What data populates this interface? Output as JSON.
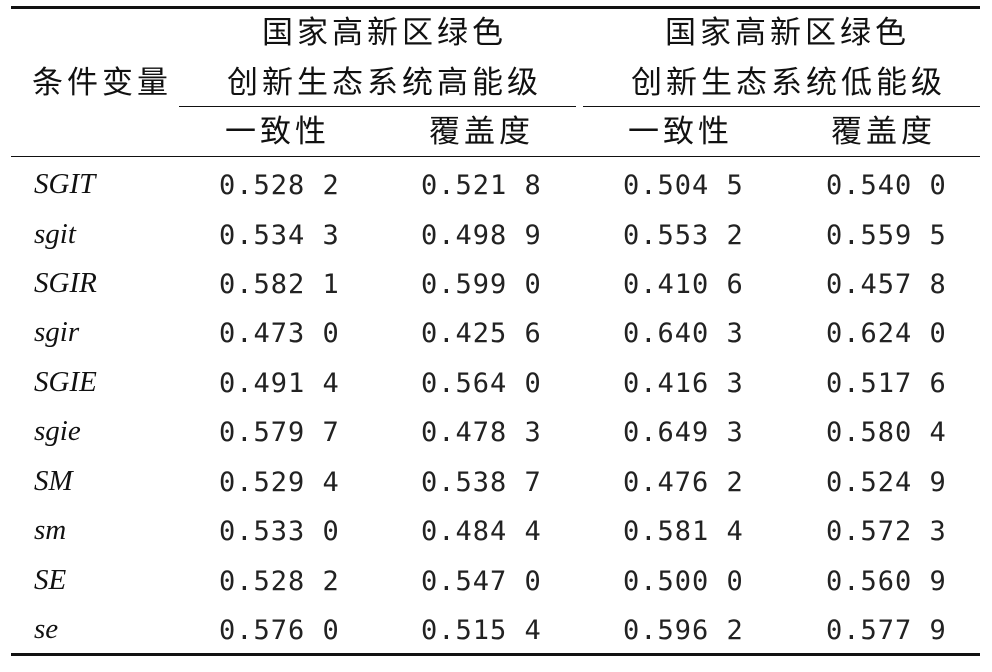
{
  "header": {
    "condition_label": "条件变量",
    "group_high_line1": "国家高新区绿色",
    "group_high_line2": "创新生态系统高能级",
    "group_low_line1": "国家高新区绿色",
    "group_low_line2": "创新生态系统低能级",
    "col_consistency_high": "一致性",
    "col_coverage_high": "覆盖度",
    "col_consistency_low": "一致性",
    "col_coverage_low": "覆盖度"
  },
  "rows": [
    {
      "var": "SGIT",
      "c1": "0.528 2",
      "c2": "0.521 8",
      "c3": "0.504 5",
      "c4": "0.540 0"
    },
    {
      "var": "sgit",
      "c1": "0.534 3",
      "c2": "0.498 9",
      "c3": "0.553 2",
      "c4": "0.559 5"
    },
    {
      "var": "SGIR",
      "c1": "0.582 1",
      "c2": "0.599 0",
      "c3": "0.410 6",
      "c4": "0.457 8"
    },
    {
      "var": "sgir",
      "c1": "0.473 0",
      "c2": "0.425 6",
      "c3": "0.640 3",
      "c4": "0.624 0"
    },
    {
      "var": "SGIE",
      "c1": "0.491 4",
      "c2": "0.564 0",
      "c3": "0.416 3",
      "c4": "0.517 6"
    },
    {
      "var": "sgie",
      "c1": "0.579 7",
      "c2": "0.478 3",
      "c3": "0.649 3",
      "c4": "0.580 4"
    },
    {
      "var": "SM",
      "c1": "0.529 4",
      "c2": "0.538 7",
      "c3": "0.476 2",
      "c4": "0.524 9"
    },
    {
      "var": "sm",
      "c1": "0.533 0",
      "c2": "0.484 4",
      "c3": "0.581 4",
      "c4": "0.572 3"
    },
    {
      "var": "SE",
      "c1": "0.528 2",
      "c2": "0.547 0",
      "c3": "0.500 0",
      "c4": "0.560 9"
    },
    {
      "var": "se",
      "c1": "0.576 0",
      "c2": "0.515 4",
      "c3": "0.596 2",
      "c4": "0.577 9"
    }
  ]
}
